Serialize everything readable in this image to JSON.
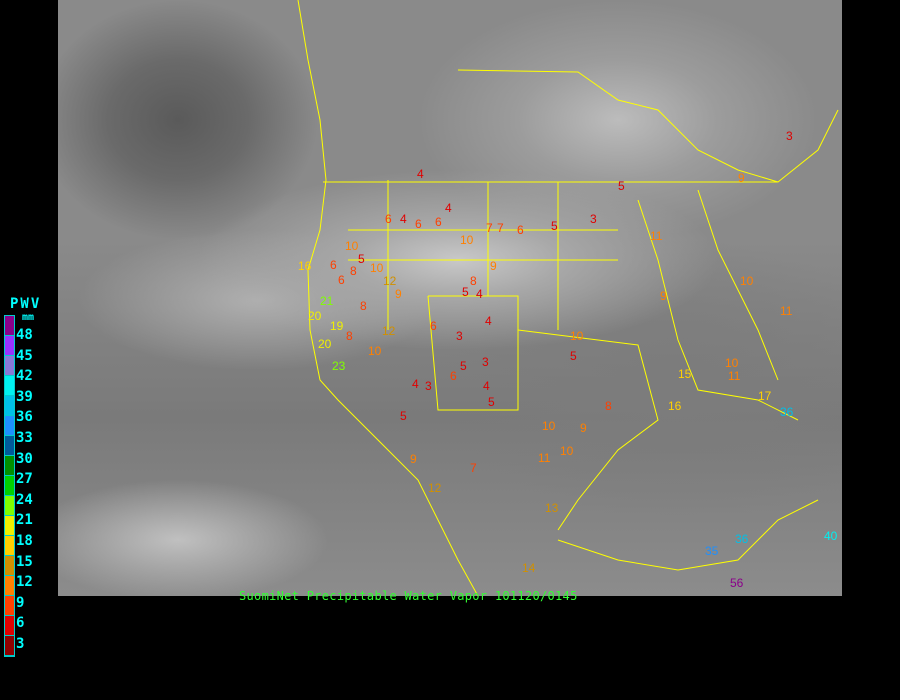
{
  "caption": "SuomiNet Precipitable Water Vapor 101120/0145",
  "legend": {
    "title": "PWV",
    "unit": "mm",
    "ticks": [
      "48",
      "45",
      "42",
      "39",
      "36",
      "33",
      "30",
      "27",
      "24",
      "21",
      "18",
      "15",
      "12",
      "9",
      "6",
      "3"
    ],
    "colors": [
      "#8b008b",
      "#9932ff",
      "#8878d8",
      "#00f0f0",
      "#00c0e8",
      "#1e90ff",
      "#005a9a",
      "#009000",
      "#00d000",
      "#80ff00",
      "#f0f000",
      "#ffd000",
      "#d09000",
      "#ff8000",
      "#ff4000",
      "#e00000",
      "#900000"
    ]
  },
  "map": {
    "boundary_color": "#ffff00",
    "stations": [
      "3",
      "4",
      "9",
      "5",
      "4",
      "6",
      "6",
      "4",
      "7",
      "6",
      "5",
      "3",
      "7",
      "10",
      "9",
      "8",
      "8",
      "10",
      "12",
      "10",
      "21",
      "19",
      "20",
      "23",
      "6",
      "5",
      "6",
      "4",
      "3",
      "5",
      "4",
      "6",
      "5",
      "3",
      "4",
      "5",
      "10",
      "10",
      "11",
      "9",
      "13",
      "14",
      "12",
      "9",
      "7",
      "10",
      "11",
      "9",
      "10",
      "5",
      "16",
      "15",
      "17",
      "36",
      "40",
      "56",
      "36",
      "35",
      "11",
      "6",
      "8",
      "10",
      "12",
      "8",
      "9",
      "16",
      "20",
      "11",
      "10",
      "4",
      "3",
      "5",
      "6",
      "8"
    ]
  }
}
